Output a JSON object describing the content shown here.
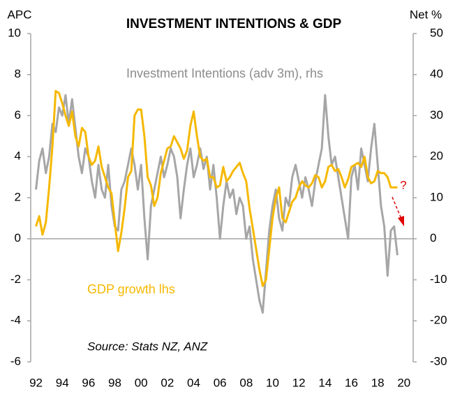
{
  "chart_data": {
    "type": "line",
    "title": "INVESTMENT INTENTIONS  & GDP",
    "y_label": "APC",
    "y2_label": "Net %",
    "source": "Source: Stats NZ, ANZ",
    "annotation": "?",
    "x": [
      1992,
      1992.25,
      1992.5,
      1992.75,
      1993,
      1993.25,
      1993.5,
      1993.75,
      1994,
      1994.25,
      1994.5,
      1994.75,
      1995,
      1995.25,
      1995.5,
      1995.75,
      1996,
      1996.25,
      1996.5,
      1996.75,
      1997,
      1997.25,
      1997.5,
      1997.75,
      1998,
      1998.25,
      1998.5,
      1998.75,
      1999,
      1999.25,
      1999.5,
      1999.75,
      2000,
      2000.25,
      2000.5,
      2000.75,
      2001,
      2001.25,
      2001.5,
      2001.75,
      2002,
      2002.25,
      2002.5,
      2002.75,
      2003,
      2003.25,
      2003.5,
      2003.75,
      2004,
      2004.25,
      2004.5,
      2004.75,
      2005,
      2005.25,
      2005.5,
      2005.75,
      2006,
      2006.25,
      2006.5,
      2006.75,
      2007,
      2007.25,
      2007.5,
      2007.75,
      2008,
      2008.25,
      2008.5,
      2008.75,
      2009,
      2009.25,
      2009.5,
      2009.75,
      2010,
      2010.25,
      2010.5,
      2010.75,
      2011,
      2011.25,
      2011.5,
      2011.75,
      2012,
      2012.25,
      2012.5,
      2012.75,
      2013,
      2013.25,
      2013.5,
      2013.75,
      2014,
      2014.25,
      2014.5,
      2014.75,
      2015,
      2015.25,
      2015.5,
      2015.75,
      2016,
      2016.25,
      2016.5,
      2016.75,
      2017,
      2017.25,
      2017.5,
      2017.75,
      2018,
      2018.25,
      2018.5,
      2018.75,
      2019,
      2019.25,
      2019.5
    ],
    "series": [
      {
        "name": "Investment Intentions (adv 3m), rhs",
        "color": "#a6a6a6",
        "axis": "y2",
        "values": [
          12,
          19,
          22,
          16,
          20,
          28,
          26,
          32,
          30,
          35,
          28,
          34,
          27,
          20,
          16,
          22,
          20,
          14,
          10,
          18,
          12,
          10,
          18,
          8,
          3,
          2,
          12,
          14,
          18,
          22,
          18,
          12,
          18,
          5,
          -5,
          8,
          12,
          16,
          20,
          15,
          18,
          22,
          20,
          15,
          5,
          12,
          18,
          22,
          15,
          18,
          22,
          17,
          20,
          12,
          18,
          10,
          0,
          8,
          14,
          10,
          12,
          6,
          10,
          8,
          0,
          3,
          -5,
          -10,
          -15,
          -18,
          -8,
          2,
          8,
          12,
          5,
          2,
          10,
          8,
          15,
          18,
          14,
          10,
          15,
          12,
          8,
          14,
          18,
          22,
          35,
          25,
          18,
          20,
          15,
          10,
          5,
          0,
          15,
          18,
          12,
          22,
          18,
          14,
          22,
          28,
          18,
          8,
          3,
          -9,
          2,
          3,
          -4
        ]
      },
      {
        "name": "GDP growth lhs",
        "color": "#f5b800",
        "values": [
          0.6,
          1.1,
          0.2,
          0.8,
          2.5,
          4.5,
          7.2,
          7.1,
          6.6,
          6.0,
          5.5,
          6.2,
          5.0,
          4.5,
          5.4,
          5.2,
          4.0,
          3.6,
          3.8,
          4.5,
          3.5,
          3.0,
          2.5,
          2.2,
          0.8,
          -0.6,
          0.3,
          1.5,
          3.0,
          3.3,
          6.0,
          6.3,
          6.3,
          5.0,
          3.0,
          2.6,
          1.6,
          2.0,
          3.2,
          3.8,
          4.4,
          4.5,
          5.0,
          4.7,
          4.4,
          3.9,
          4.3,
          5.5,
          6.2,
          5.0,
          4.0,
          3.8,
          3.9,
          3.0,
          3.0,
          2.5,
          2.6,
          3.5,
          2.8,
          3.0,
          3.3,
          3.5,
          3.7,
          3.2,
          2.8,
          1.5,
          0.5,
          -0.5,
          -1.5,
          -2.3,
          -2.0,
          -0.5,
          1.0,
          2.0,
          2.5,
          1.0,
          0.8,
          1.3,
          1.8,
          2.0,
          2.5,
          2.8,
          2.6,
          2.5,
          2.7,
          3.1,
          3.0,
          2.5,
          2.8,
          3.5,
          3.6,
          3.3,
          3.4,
          3.0,
          2.5,
          2.9,
          3.5,
          3.6,
          3.7,
          3.5,
          4.0,
          3.0,
          2.7,
          2.8,
          3.3,
          3.2,
          3.2,
          3.0,
          2.5,
          2.5,
          2.5
        ]
      }
    ],
    "xlim": [
      1991.6,
      2020.7
    ],
    "xticks": [
      {
        "value": 1992,
        "label": "92"
      },
      {
        "value": 1994,
        "label": "94"
      },
      {
        "value": 1996,
        "label": "96"
      },
      {
        "value": 1998,
        "label": "98"
      },
      {
        "value": 2000,
        "label": "00"
      },
      {
        "value": 2002,
        "label": "02"
      },
      {
        "value": 2004,
        "label": "04"
      },
      {
        "value": 2006,
        "label": "06"
      },
      {
        "value": 2008,
        "label": "08"
      },
      {
        "value": 2010,
        "label": "10"
      },
      {
        "value": 2012,
        "label": "12"
      },
      {
        "value": 2014,
        "label": "14"
      },
      {
        "value": 2016,
        "label": "16"
      },
      {
        "value": 2018,
        "label": "18"
      },
      {
        "value": 2020,
        "label": "20"
      }
    ],
    "ylim": [
      -6,
      10
    ],
    "yticks": [
      -6,
      -4,
      -2,
      0,
      2,
      4,
      6,
      8,
      10
    ],
    "y2lim": [
      -30,
      50
    ],
    "y2ticks": [
      -30,
      -20,
      -10,
      0,
      10,
      20,
      30,
      40,
      50
    ]
  }
}
